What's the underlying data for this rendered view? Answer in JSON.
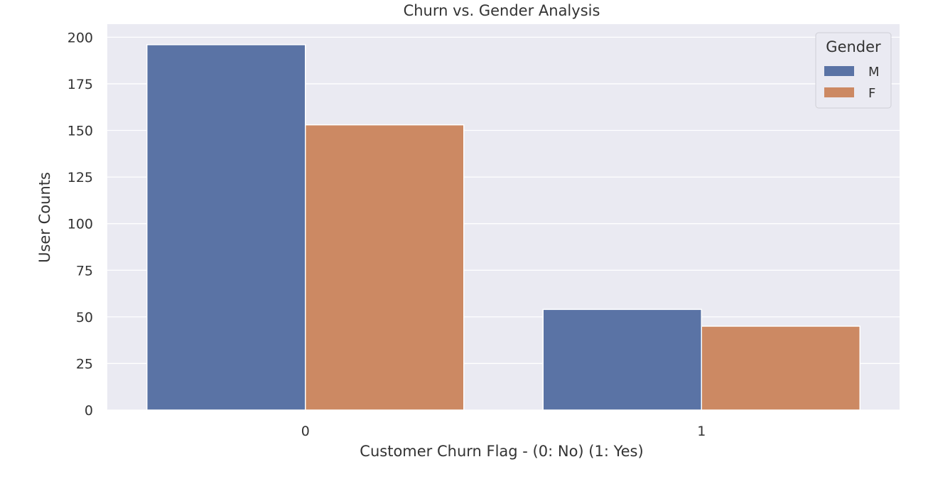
{
  "chart_data": {
    "type": "bar",
    "title": "Churn vs. Gender Analysis",
    "xlabel": "Customer Churn Flag - (0: No) (1: Yes)",
    "ylabel": "User Counts",
    "categories": [
      "0",
      "1"
    ],
    "series": [
      {
        "name": "M",
        "values": [
          196,
          54
        ],
        "color": "#5a73a5"
      },
      {
        "name": "F",
        "values": [
          153,
          45
        ],
        "color": "#cc8963"
      }
    ],
    "ylim": [
      0,
      207
    ],
    "yticks": [
      0,
      25,
      50,
      75,
      100,
      125,
      150,
      175,
      200
    ],
    "grid": true,
    "legend": {
      "title": "Gender",
      "placement": "top-right"
    },
    "colors": {
      "plot_background": "#eaeaf2",
      "grid": "#ffffff"
    }
  }
}
